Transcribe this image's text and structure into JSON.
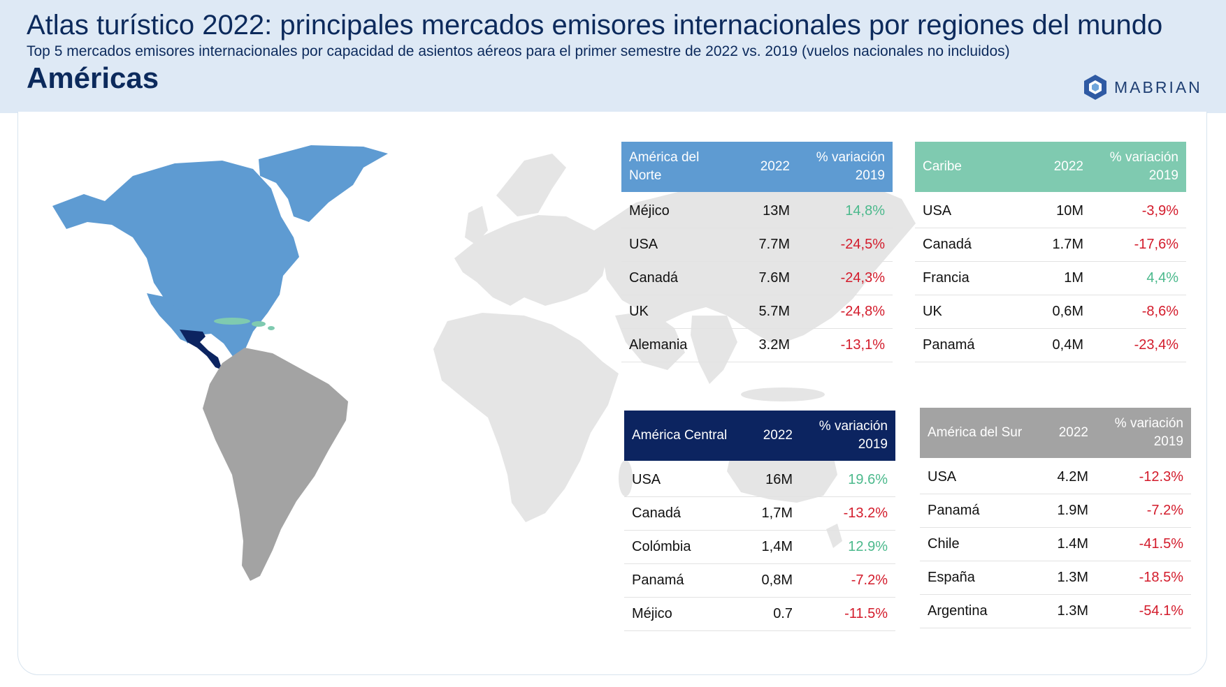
{
  "header": {
    "title": "Atlas turístico 2022: principales mercados emisores internacionales por regiones del mundo",
    "subtitle": "Top 5 mercados emisores internacionales por capacidad de asientos aéreos para el primer semestre de 2022 vs. 2019 (vuelos nacionales no incluidos)",
    "region": "Américas",
    "logo_text": "MABRIAN"
  },
  "colors": {
    "north_america": "#5e9bd2",
    "caribbean": "#7fcab0",
    "central_america": "#0c2460",
    "south_america": "#a3a3a3",
    "world": "#e5e5e5",
    "positive": "#4bb98c",
    "negative": "#d31b2b"
  },
  "tables": {
    "norte": {
      "header": {
        "region": "América del Norte",
        "year": "2022",
        "change": "% variación 2019"
      },
      "rows": [
        {
          "country": "Méjico",
          "value": "13M",
          "change": "14,8%",
          "dir": "pos"
        },
        {
          "country": "USA",
          "value": "7.7M",
          "change": "-24,5%",
          "dir": "neg"
        },
        {
          "country": "Canadá",
          "value": "7.6M",
          "change": "-24,3%",
          "dir": "neg"
        },
        {
          "country": "UK",
          "value": "5.7M",
          "change": "-24,8%",
          "dir": "neg"
        },
        {
          "country": "Alemania",
          "value": "3.2M",
          "change": "-13,1%",
          "dir": "neg"
        }
      ]
    },
    "caribe": {
      "header": {
        "region": "Caribe",
        "year": "2022",
        "change": "% variación 2019"
      },
      "rows": [
        {
          "country": "USA",
          "value": "10M",
          "change": "-3,9%",
          "dir": "neg"
        },
        {
          "country": "Canadá",
          "value": "1.7M",
          "change": "-17,6%",
          "dir": "neg"
        },
        {
          "country": "Francia",
          "value": "1M",
          "change": "4,4%",
          "dir": "pos"
        },
        {
          "country": "UK",
          "value": "0,6M",
          "change": "-8,6%",
          "dir": "neg"
        },
        {
          "country": "Panamá",
          "value": "0,4M",
          "change": "-23,4%",
          "dir": "neg"
        }
      ]
    },
    "central": {
      "header": {
        "region": "América Central",
        "year": "2022",
        "change": "% variación 2019"
      },
      "rows": [
        {
          "country": "USA",
          "value": "16M",
          "change": "19.6%",
          "dir": "pos"
        },
        {
          "country": "Canadá",
          "value": "1,7M",
          "change": "-13.2%",
          "dir": "neg"
        },
        {
          "country": "Colómbia",
          "value": "1,4M",
          "change": "12.9%",
          "dir": "pos"
        },
        {
          "country": "Panamá",
          "value": "0,8M",
          "change": "-7.2%",
          "dir": "neg"
        },
        {
          "country": "Méjico",
          "value": "0.7",
          "change": "-11.5%",
          "dir": "neg"
        }
      ]
    },
    "sur": {
      "header": {
        "region": "América del Sur",
        "year": "2022",
        "change": "% variación 2019"
      },
      "rows": [
        {
          "country": "USA",
          "value": "4.2M",
          "change": "-12.3%",
          "dir": "neg"
        },
        {
          "country": "Panamá",
          "value": "1.9M",
          "change": "-7.2%",
          "dir": "neg"
        },
        {
          "country": "Chile",
          "value": "1.4M",
          "change": "-41.5%",
          "dir": "neg"
        },
        {
          "country": "España",
          "value": "1.3M",
          "change": "-18.5%",
          "dir": "neg"
        },
        {
          "country": "Argentina",
          "value": "1.3M",
          "change": "-54.1%",
          "dir": "neg"
        }
      ]
    }
  }
}
